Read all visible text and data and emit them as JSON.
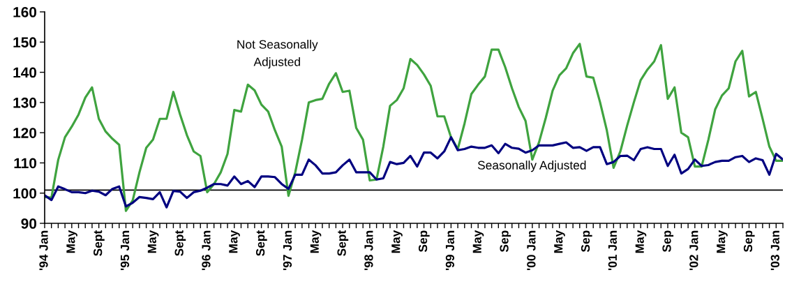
{
  "chart_data": {
    "type": "line",
    "categories": [
      "'94 Jan",
      null,
      null,
      null,
      "May",
      null,
      null,
      null,
      "Sept",
      null,
      null,
      null,
      "'95 Jan",
      null,
      null,
      null,
      "May",
      null,
      null,
      null,
      "Sept",
      null,
      null,
      null,
      "'96 Jan",
      null,
      null,
      null,
      "May",
      null,
      null,
      null,
      "Sept",
      null,
      null,
      null,
      "'97 Jan",
      null,
      null,
      null,
      "May",
      null,
      null,
      null,
      "Sept",
      null,
      null,
      null,
      "'98 Jan",
      null,
      null,
      null,
      "May",
      null,
      null,
      null,
      "Sep",
      null,
      null,
      null,
      "'99 Jan",
      null,
      null,
      null,
      "May",
      null,
      null,
      null,
      "Sep",
      null,
      null,
      null,
      "'00 Jan",
      null,
      null,
      null,
      "May",
      null,
      null,
      null,
      "Sep",
      null,
      null,
      null,
      "'01 Jan",
      null,
      null,
      null,
      "May",
      null,
      null,
      null,
      "Sep",
      null,
      null,
      null,
      "'02 Jan",
      null,
      null,
      null,
      "May",
      null,
      null,
      null,
      "Sep",
      null,
      null,
      null,
      "'03 Jan",
      null
    ],
    "series": [
      {
        "name": "Not Seasonally\nAdjusted",
        "color": "#3fa33f",
        "values": [
          98.7,
          98.5,
          111,
          118.5,
          122,
          126,
          131.6,
          135,
          124.6,
          120.4,
          118,
          116,
          94.1,
          97.6,
          106.9,
          115,
          117.7,
          124.6,
          124.6,
          133.5,
          126,
          119.2,
          113.8,
          112.3,
          100.3,
          103,
          106.9,
          113,
          127.5,
          127,
          135.9,
          134,
          129.3,
          127,
          120.8,
          115.4,
          99.1,
          106.9,
          117.7,
          130,
          130.8,
          131.2,
          136.2,
          139.7,
          133.5,
          133.9,
          121.6,
          117.7,
          104.2,
          104.5,
          115.4,
          128.9,
          130.8,
          134.7,
          144.4,
          142.4,
          139.3,
          135.5,
          125.4,
          125.4,
          118.5,
          114.6,
          123.1,
          132.8,
          135.9,
          138.6,
          147.5,
          147.5,
          141.7,
          134.7,
          128.5,
          123.9,
          111.1,
          116.9,
          125,
          133.9,
          139,
          141.3,
          146.3,
          149.4,
          138.6,
          138.2,
          130.1,
          120.8,
          108.4,
          113.8,
          122.3,
          130.1,
          137.4,
          140.9,
          143.6,
          149,
          131.2,
          135,
          120,
          118.5,
          108.8,
          108.8,
          117.7,
          127.7,
          132.3,
          134.7,
          143.6,
          147.1,
          132,
          133.5,
          124.6,
          115.4,
          110.7,
          110.7
        ]
      },
      {
        "name": "Seasonally Adjusted",
        "color": "#000080",
        "values": [
          99.3,
          97.7,
          102.2,
          101.3,
          100.3,
          100.3,
          100,
          100.8,
          100.5,
          99.3,
          101.4,
          102.2,
          95.6,
          96.8,
          98.7,
          98.4,
          98,
          100.3,
          95.3,
          100.7,
          100.5,
          98.4,
          100.3,
          100.8,
          101.8,
          103,
          103,
          102.5,
          105.5,
          103,
          104,
          102,
          105.5,
          105.5,
          105.3,
          103,
          101.4,
          106.1,
          106.1,
          111.1,
          109.2,
          106.5,
          106.5,
          106.9,
          109.2,
          111.1,
          106.9,
          106.9,
          106.9,
          104.5,
          104.9,
          110.3,
          109.6,
          110,
          112.3,
          108.8,
          113.4,
          113.4,
          111.5,
          113.8,
          118.5,
          114.2,
          114.6,
          115.4,
          115,
          115,
          115.8,
          113.2,
          116.3,
          115,
          114.7,
          113.4,
          114.2,
          115.8,
          115.8,
          115.8,
          116.3,
          116.8,
          115,
          115.2,
          114,
          115.2,
          115.2,
          109.6,
          110.3,
          112.3,
          112.4,
          110.9,
          114.6,
          115.2,
          114.6,
          114.6,
          109,
          112.7,
          106.5,
          108,
          111.1,
          109,
          109.3,
          110.3,
          110.7,
          110.7,
          111.9,
          112.3,
          110.3,
          111.5,
          110.9,
          106.1,
          113,
          111.1
        ]
      }
    ],
    "ylim": [
      90,
      160
    ],
    "yticks": [
      90,
      100,
      110,
      120,
      130,
      140,
      150,
      160
    ],
    "ref_lines": [
      {
        "axis": "y",
        "value": 101,
        "color": "#000000"
      }
    ],
    "grid": false,
    "legend": false,
    "marker": "none",
    "line_style": "solid"
  }
}
